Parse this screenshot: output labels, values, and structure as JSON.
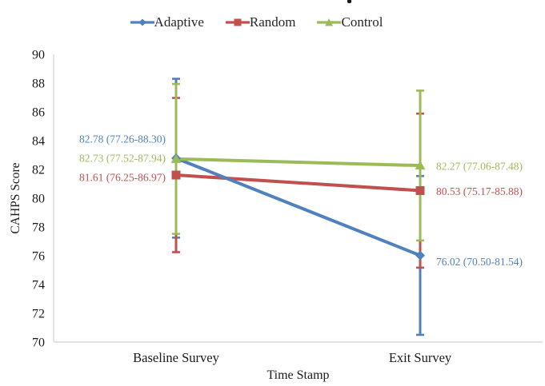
{
  "chart_data": {
    "type": "line",
    "xlabel": "Time Stamp",
    "ylabel": "CAHPS Score",
    "categories": [
      "Baseline Survey",
      "Exit Survey"
    ],
    "ylim": [
      70,
      90
    ],
    "ytick_step": 2,
    "grid": false,
    "legend_position": "top",
    "axis_color": "#D9D9D9",
    "text_color": "#1A1A1A",
    "series": [
      {
        "name": "Adaptive",
        "marker": "diamond",
        "color": "#4F81BD",
        "values": [
          82.78,
          76.02
        ],
        "ci_low": [
          77.26,
          70.5
        ],
        "ci_high": [
          88.3,
          81.54
        ],
        "point_labels": [
          "82.78 (77.26-88.30)",
          "76.02 (70.50-81.54)"
        ],
        "label_dy": [
          -24,
          8
        ]
      },
      {
        "name": "Random",
        "marker": "square",
        "color": "#C0504D",
        "values": [
          81.61,
          80.53
        ],
        "ci_low": [
          76.25,
          75.17
        ],
        "ci_high": [
          86.97,
          85.88
        ],
        "point_labels": [
          "81.61 (76.25-86.97)",
          "80.53 (75.17-85.88)"
        ],
        "label_dy": [
          3,
          1
        ]
      },
      {
        "name": "Control",
        "marker": "triangle",
        "color": "#9BBB59",
        "values": [
          82.73,
          82.27
        ],
        "ci_low": [
          77.52,
          77.06
        ],
        "ci_high": [
          87.94,
          87.48
        ],
        "point_labels": [
          "82.73 (77.52-87.94)",
          "82.27 (77.06-87.48)"
        ],
        "label_dy": [
          -1,
          1
        ]
      }
    ]
  }
}
